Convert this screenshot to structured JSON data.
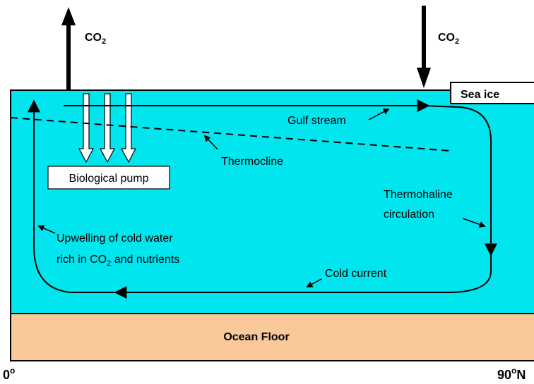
{
  "labels": {
    "co2_left": {
      "main": "CO",
      "sub": "2"
    },
    "co2_right": {
      "main": "CO",
      "sub": "2"
    },
    "sea_ice": "Sea ice",
    "gulf_stream": "Gulf stream",
    "thermocline": "Thermocline",
    "biological_pump": "Biological pump",
    "thermohaline": [
      "Thermohaline",
      "circulation"
    ],
    "upwelling": {
      "line1": "Upwelling of cold water",
      "line2_before": "rich in CO",
      "line2_sub": "2",
      "line2_after": " and nutrients"
    },
    "cold_current": "Cold current",
    "ocean_floor": "Ocean Floor",
    "left_lat": {
      "main": "0",
      "sup": "o"
    },
    "right_lat": {
      "main": "90",
      "sup": "o",
      "after": "N"
    }
  }
}
